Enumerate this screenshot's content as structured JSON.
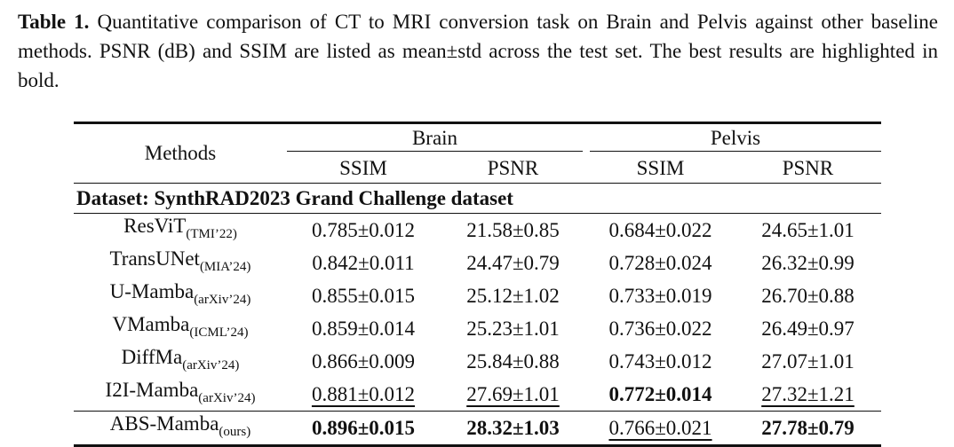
{
  "caption": {
    "label": "Table 1.",
    "text": "Quantitative comparison of CT to MRI conversion task on Brain and Pelvis against other baseline methods. PSNR (dB) and SSIM are listed as mean±std across the test set. The best results are highlighted in bold."
  },
  "table": {
    "header": {
      "methods": "Methods",
      "groups": [
        {
          "name": "Brain",
          "columns": [
            "SSIM",
            "PSNR"
          ]
        },
        {
          "name": "Pelvis",
          "columns": [
            "SSIM",
            "PSNR"
          ]
        }
      ]
    },
    "section": "Dataset: SynthRAD2023 Grand Challenge dataset",
    "rows": [
      {
        "method": "ResViT",
        "venue": "(TMI’22)",
        "cells": [
          "0.785±0.012",
          "21.58±0.85",
          "0.684±0.022",
          "24.65±1.01"
        ],
        "emphasis": [
          "plain",
          "plain",
          "plain",
          "plain"
        ]
      },
      {
        "method": "TransUNet",
        "venue": "(MIA’24)",
        "cells": [
          "0.842±0.011",
          "24.47±0.79",
          "0.728±0.024",
          "26.32±0.99"
        ],
        "emphasis": [
          "plain",
          "plain",
          "plain",
          "plain"
        ]
      },
      {
        "method": "U-Mamba",
        "venue": "(arXiv’24)",
        "cells": [
          "0.855±0.015",
          "25.12±1.02",
          "0.733±0.019",
          "26.70±0.88"
        ],
        "emphasis": [
          "plain",
          "plain",
          "plain",
          "plain"
        ]
      },
      {
        "method": "VMamba",
        "venue": "(ICML’24)",
        "cells": [
          "0.859±0.014",
          "25.23±1.01",
          "0.736±0.022",
          "26.49±0.97"
        ],
        "emphasis": [
          "plain",
          "plain",
          "plain",
          "plain"
        ]
      },
      {
        "method": "DiffMa",
        "venue": "(arXiv’24)",
        "cells": [
          "0.866±0.009",
          "25.84±0.88",
          "0.743±0.012",
          "27.07±1.01"
        ],
        "emphasis": [
          "plain",
          "plain",
          "plain",
          "plain"
        ]
      },
      {
        "method": "I2I-Mamba",
        "venue": "(arXiv’24)",
        "cells": [
          "0.881±0.012",
          "27.69±1.01",
          "0.772±0.014",
          "27.32±1.21"
        ],
        "emphasis": [
          "underline",
          "underline",
          "bold",
          "underline"
        ]
      }
    ],
    "proposed": {
      "method": "ABS-Mamba",
      "venue": "(ours)",
      "cells": [
        "0.896±0.015",
        "28.32±1.03",
        "0.766±0.021",
        "27.78±0.79"
      ],
      "emphasis": [
        "bold",
        "bold",
        "underline",
        "bold"
      ]
    }
  }
}
